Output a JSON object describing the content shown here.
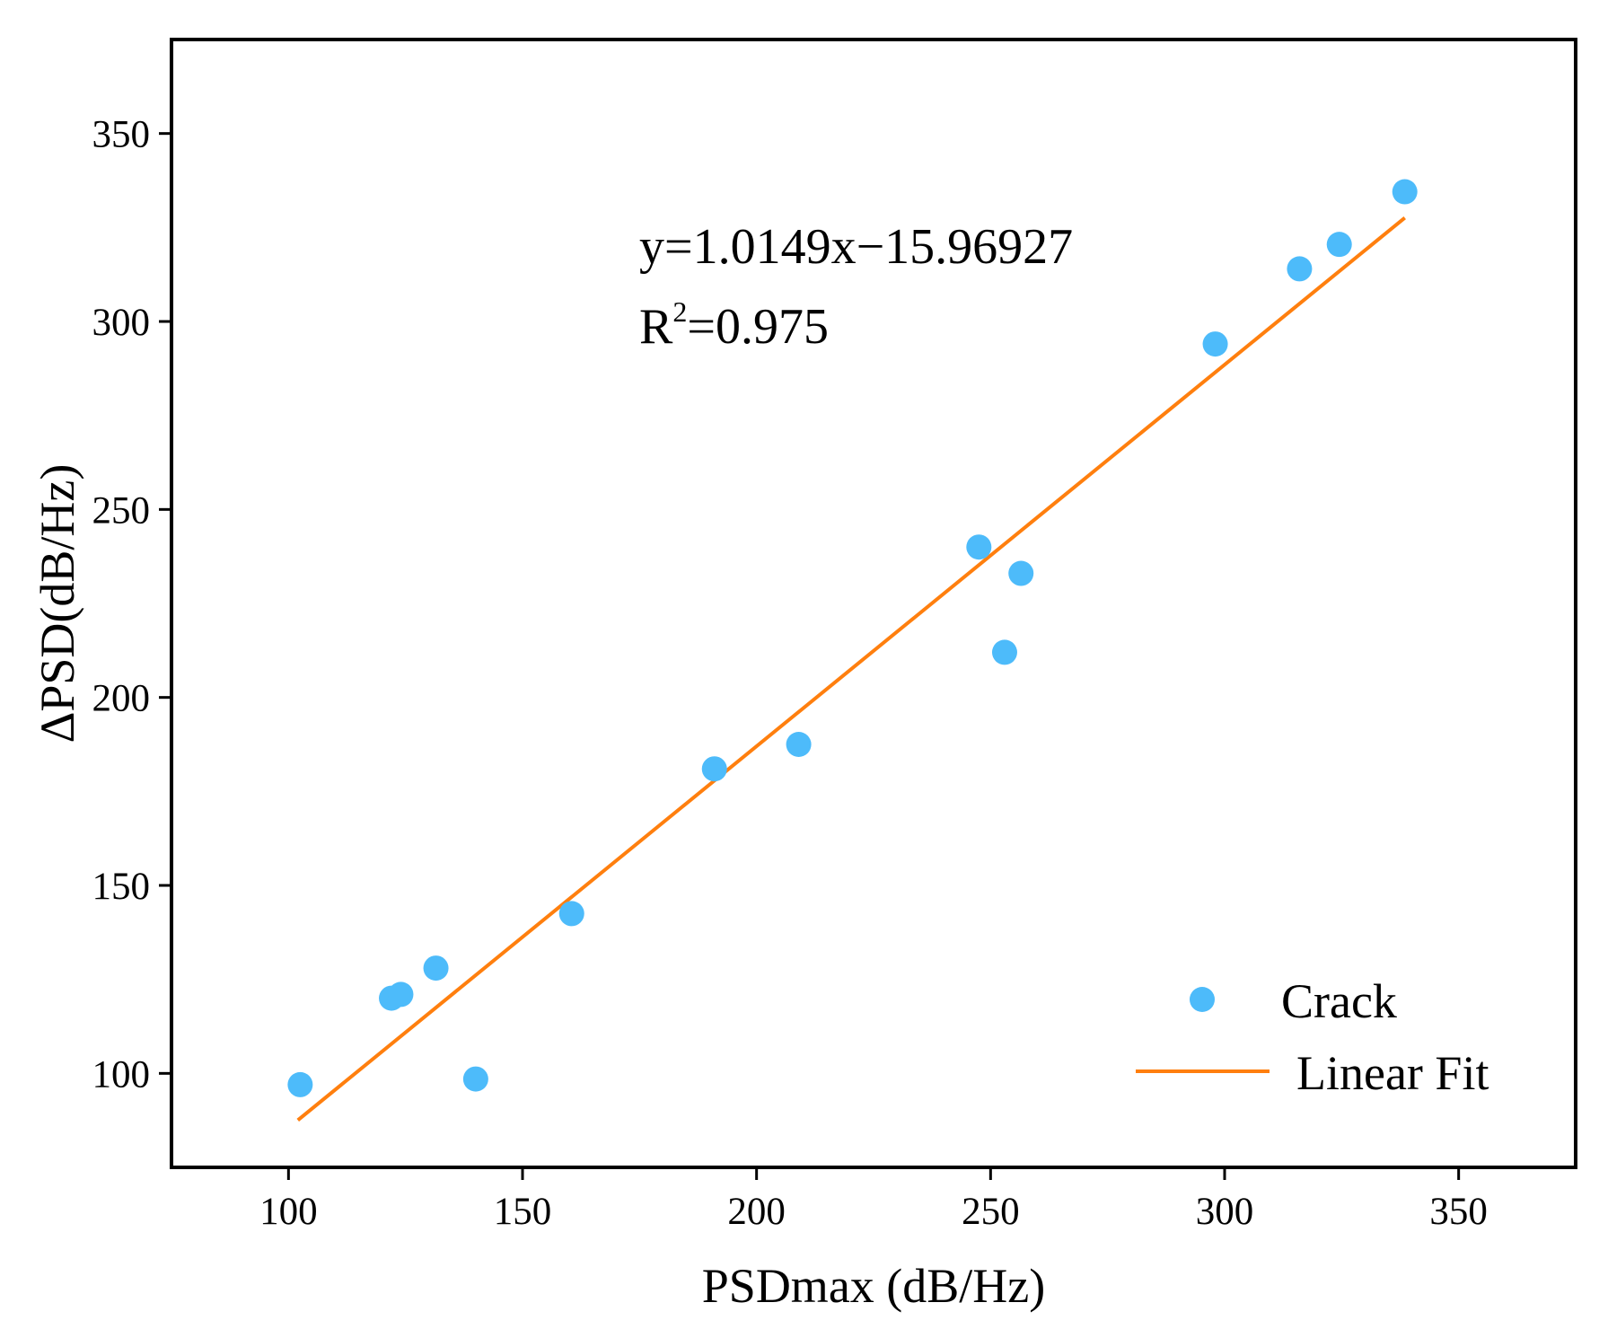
{
  "chart_data": {
    "type": "scatter",
    "title": "",
    "xlabel": "PSDmax (dB/Hz)",
    "ylabel": "ΔPSD(dB/Hz)",
    "xlim": [
      75,
      375
    ],
    "ylim": [
      75,
      375
    ],
    "xticks": [
      100,
      150,
      200,
      250,
      300,
      350
    ],
    "yticks": [
      100,
      150,
      200,
      250,
      300,
      350
    ],
    "grid": false,
    "legend_position": "bottom-right",
    "series": [
      {
        "name": "Crack",
        "kind": "scatter",
        "color": "#4dbbfa",
        "points": [
          {
            "x": 102.5,
            "y": 97
          },
          {
            "x": 122,
            "y": 120
          },
          {
            "x": 124,
            "y": 121
          },
          {
            "x": 131.5,
            "y": 128
          },
          {
            "x": 140,
            "y": 98.5
          },
          {
            "x": 160.5,
            "y": 142.5
          },
          {
            "x": 191,
            "y": 181
          },
          {
            "x": 209,
            "y": 187.5
          },
          {
            "x": 247.5,
            "y": 240
          },
          {
            "x": 253,
            "y": 212
          },
          {
            "x": 256.5,
            "y": 233
          },
          {
            "x": 298,
            "y": 294
          },
          {
            "x": 316,
            "y": 314
          },
          {
            "x": 324.5,
            "y": 320.5
          },
          {
            "x": 338.5,
            "y": 334.5
          }
        ]
      },
      {
        "name": "Linear Fit",
        "kind": "line",
        "color": "#ff7f0e",
        "slope": 1.0149,
        "intercept": -15.96927,
        "x_range": [
          102,
          338.5
        ]
      }
    ],
    "annotations": {
      "equation": "y=1.0149x−15.96927",
      "r2_prefix": "R",
      "r2_sup": "2",
      "r2_value": "=0.975"
    }
  }
}
